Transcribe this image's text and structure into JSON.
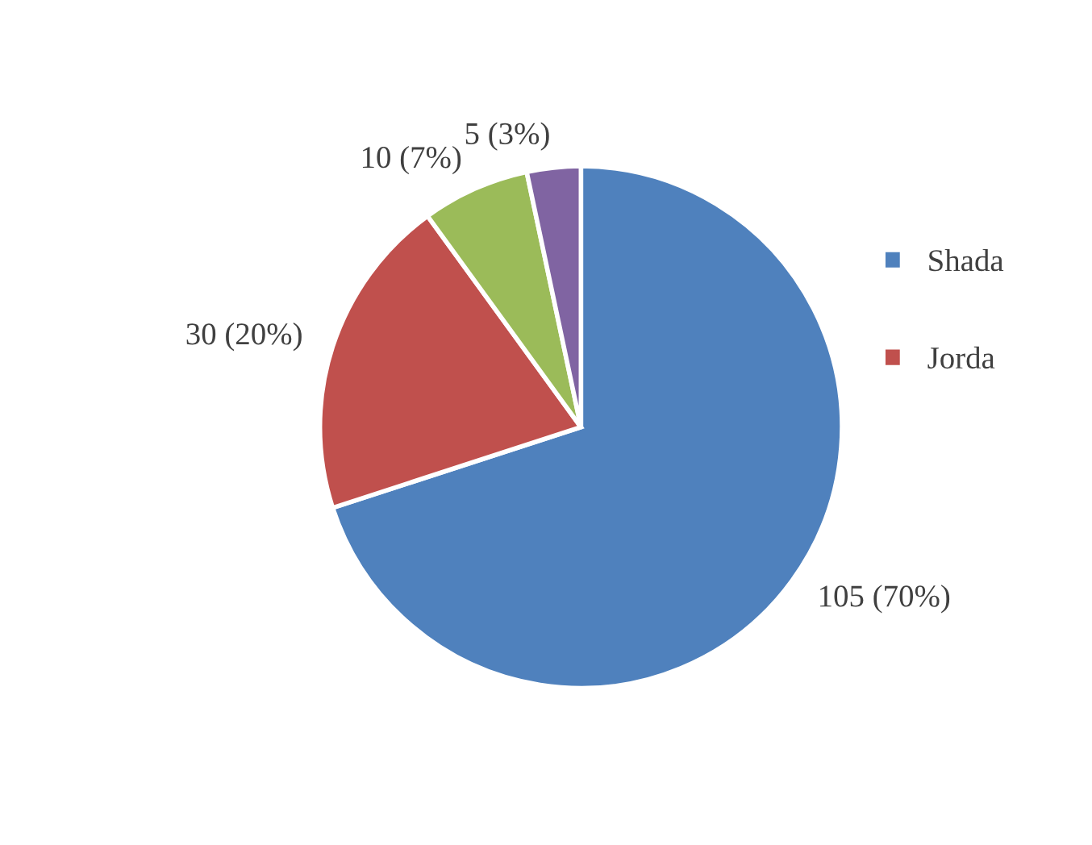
{
  "chart_data": {
    "type": "pie",
    "categories": [
      "Shada",
      "Jorda",
      null,
      null
    ],
    "values": [
      105,
      30,
      10,
      5
    ],
    "value_labels": [
      "105 (70%)",
      "30 (20%)",
      "10 (7%)",
      "5 (3%)"
    ],
    "colors": [
      "#4f81bd",
      "#c0504d",
      "#9bbb59",
      "#8064a2"
    ],
    "legend": "right"
  }
}
